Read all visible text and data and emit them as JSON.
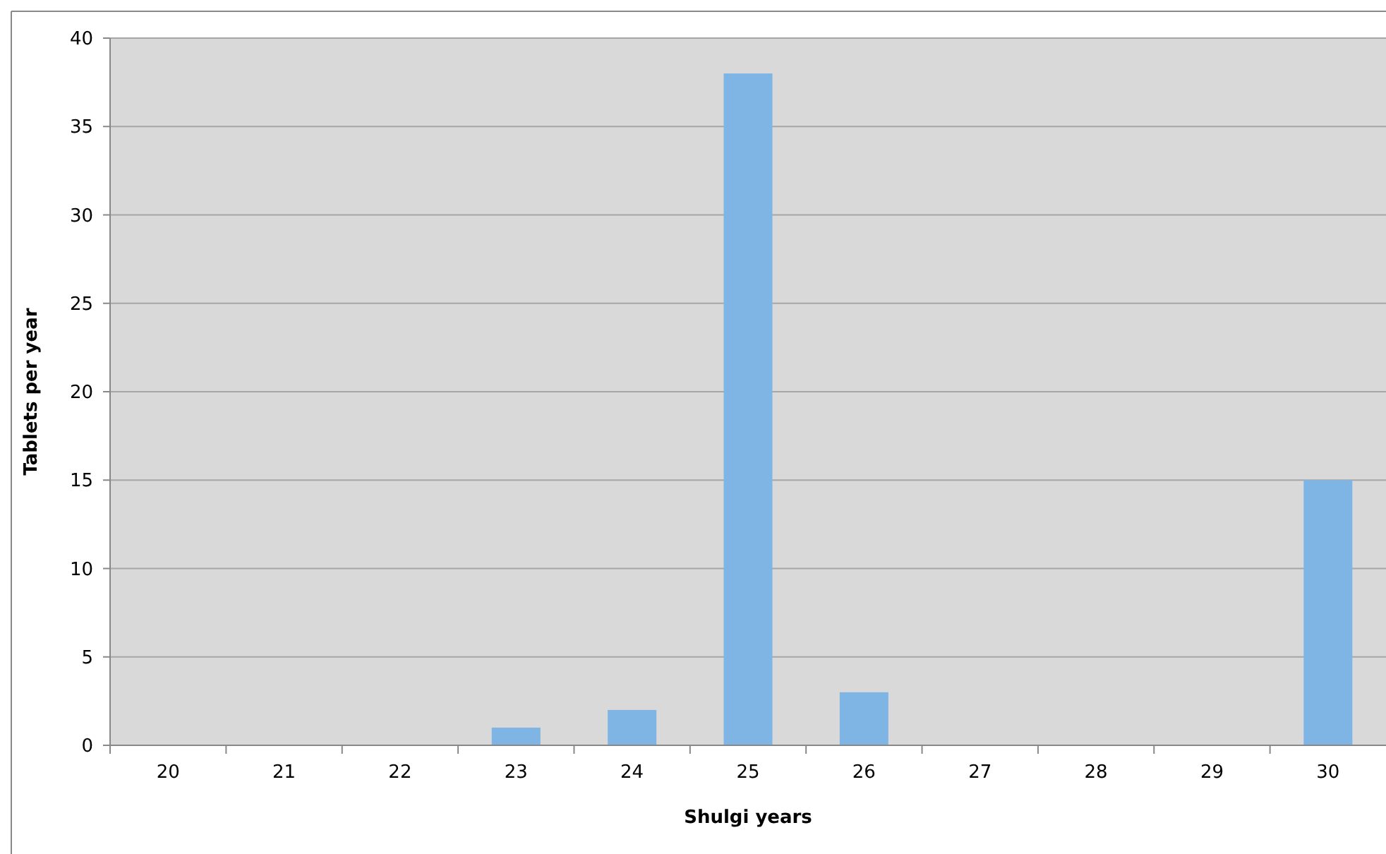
{
  "chart_data": {
    "type": "bar",
    "xlabel": "Shulgi years",
    "ylabel": "Tablets per year",
    "categories": [
      "20",
      "21",
      "22",
      "23",
      "24",
      "25",
      "26",
      "27",
      "28",
      "29",
      "30"
    ],
    "values": [
      0,
      0,
      0,
      1,
      2,
      38,
      3,
      0,
      0,
      0,
      15
    ],
    "color": "#7fb5e5",
    "ylim": [
      0,
      40
    ],
    "yticks": [
      0,
      5,
      10,
      15,
      20,
      25,
      30,
      35,
      40
    ],
    "grid": "y"
  }
}
